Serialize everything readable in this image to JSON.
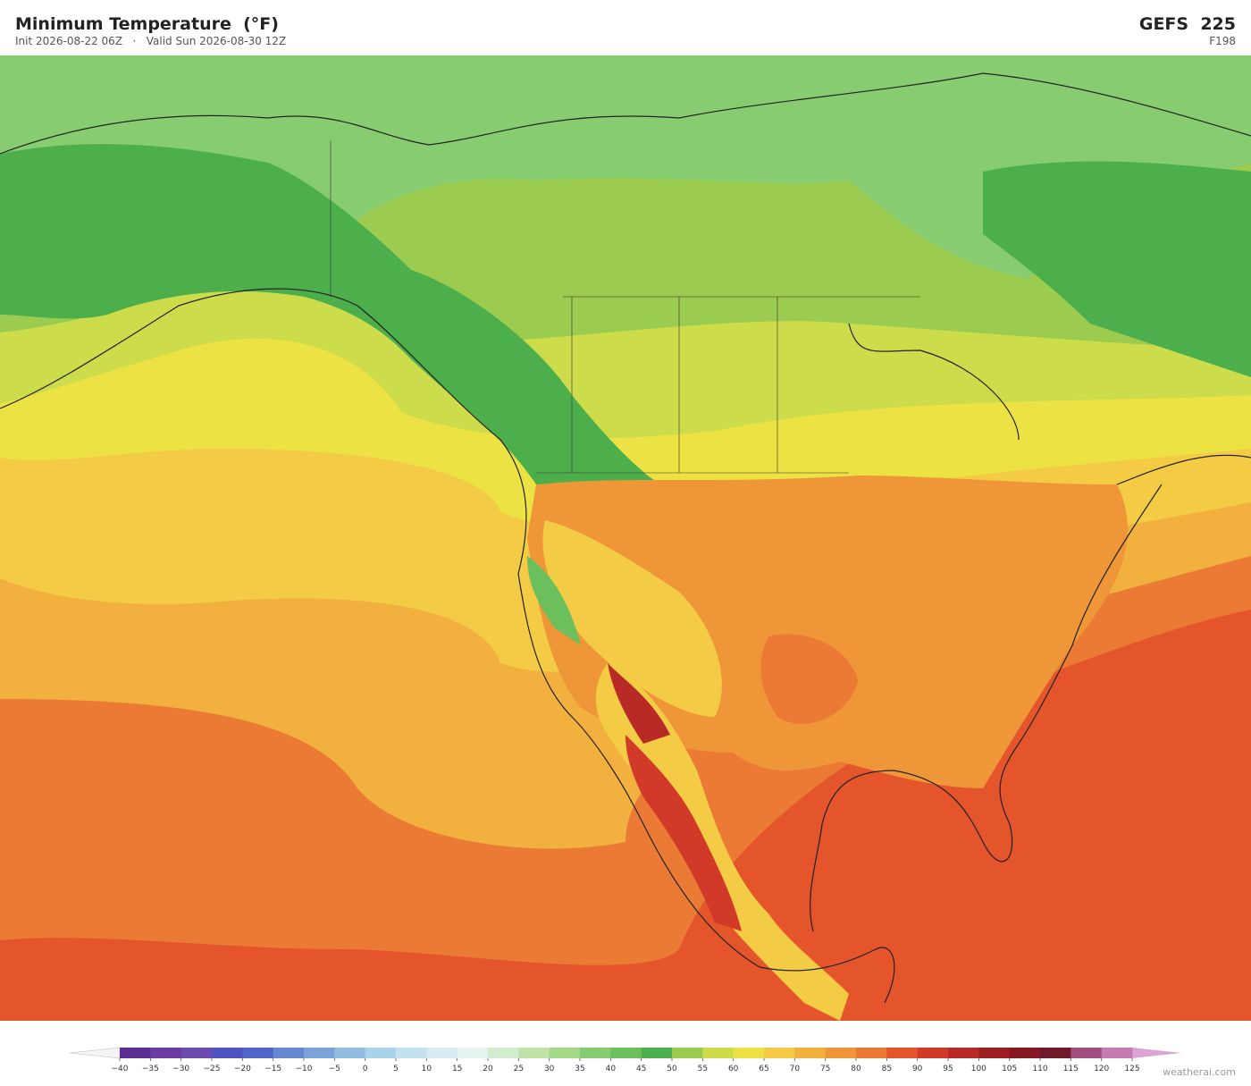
{
  "header": {
    "title": "Minimum Temperature  (°F)",
    "subtitle": "Init 2026-08-22 06Z   ·   Valid Sun 2026-08-30 12Z",
    "model": "GEFS  225",
    "forecast_hour": "F198"
  },
  "colorbar": {
    "ticks": [
      {
        "value": -40,
        "label": "−40"
      },
      {
        "value": -35,
        "label": "−35"
      },
      {
        "value": -30,
        "label": "−30"
      },
      {
        "value": -25,
        "label": "−25"
      },
      {
        "value": -20,
        "label": "−20"
      },
      {
        "value": -15,
        "label": "−15"
      },
      {
        "value": -10,
        "label": "−10"
      },
      {
        "value": -5,
        "label": "−5"
      },
      0,
      5,
      10,
      15,
      20,
      25,
      30,
      35,
      40,
      45,
      50,
      55,
      60,
      65,
      70,
      75,
      80,
      85,
      90,
      95,
      100,
      105,
      110,
      115,
      120,
      125
    ],
    "colors": [
      "#5a2d91",
      "#6a3ba0",
      "#6d4cb0",
      "#5052c0",
      "#4f65c8",
      "#6688d0",
      "#7ba3d8",
      "#93bde0",
      "#a9d3eb",
      "#c3e2ef",
      "#d6ecf0",
      "#e4f3ef",
      "#d3ecd0",
      "#bfe3a6",
      "#a2d888",
      "#88cc72",
      "#6cbf5d",
      "#4caf4b",
      "#9bcb4f",
      "#cddc4a",
      "#ece244",
      "#f4cb44",
      "#f2b03f",
      "#ef9639",
      "#ea7a34",
      "#e4552b",
      "#d13a28",
      "#b82a25",
      "#9e1f22",
      "#851820",
      "#6f1a2a",
      "#a04d80",
      "#c47bb0"
    ],
    "under_color": "#f4f4f4",
    "over_color": "#dba4d6"
  },
  "footer": {
    "credit": "weatherai.com"
  }
}
